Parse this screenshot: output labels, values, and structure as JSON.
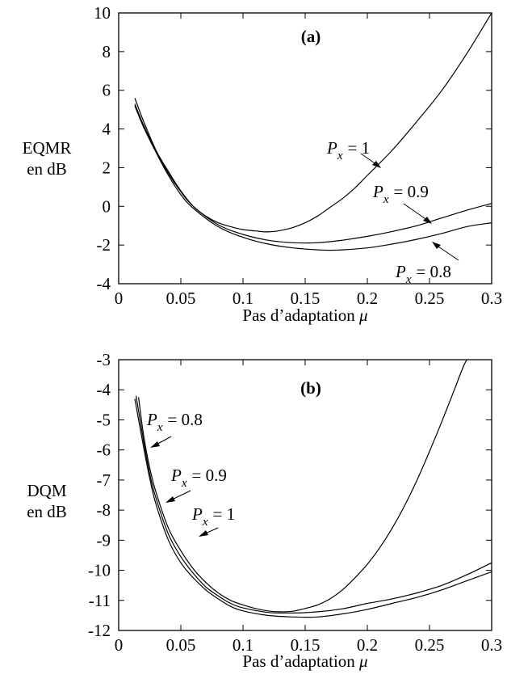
{
  "chart_data": [
    {
      "type": "line",
      "panel_label": "(a)",
      "xlabel": "Pas d’adaptation",
      "xlabel_symbol": "μ",
      "ylabel_lines": [
        "EQMR",
        "en dB"
      ],
      "xlim": [
        0,
        0.3
      ],
      "ylim": [
        -4,
        10
      ],
      "xticks": [
        0,
        0.05,
        0.1,
        0.15,
        0.2,
        0.25,
        0.3
      ],
      "xtick_labels": [
        "0",
        "0.05",
        "0.1",
        "0.15",
        "0.2",
        "0.25",
        "0.3"
      ],
      "yticks": [
        -4,
        -2,
        0,
        2,
        4,
        6,
        8,
        10
      ],
      "ytick_labels": [
        "-4",
        "-2",
        "0",
        "2",
        "4",
        "6",
        "8",
        "10"
      ],
      "series": [
        {
          "name": "P_x = 1",
          "label_var": "P",
          "label_sub": "x",
          "label_val": "= 1",
          "x": [
            0.013,
            0.02,
            0.03,
            0.04,
            0.05,
            0.06,
            0.07,
            0.08,
            0.09,
            0.1,
            0.11,
            0.12,
            0.13,
            0.14,
            0.15,
            0.16,
            0.17,
            0.18,
            0.19,
            0.2,
            0.22,
            0.24,
            0.26,
            0.28,
            0.3
          ],
          "y": [
            5.6,
            4.4,
            2.9,
            1.8,
            0.8,
            0.0,
            -0.5,
            -0.85,
            -1.05,
            -1.2,
            -1.27,
            -1.32,
            -1.25,
            -1.1,
            -0.85,
            -0.5,
            -0.05,
            0.4,
            0.95,
            1.6,
            2.9,
            4.4,
            6.0,
            7.9,
            10.0
          ]
        },
        {
          "name": "P_x = 0.9",
          "label_var": "P",
          "label_sub": "x",
          "label_val": "= 0.9",
          "x": [
            0.013,
            0.02,
            0.03,
            0.04,
            0.05,
            0.06,
            0.08,
            0.1,
            0.12,
            0.14,
            0.16,
            0.18,
            0.2,
            0.22,
            0.24,
            0.26,
            0.28,
            0.3
          ],
          "y": [
            5.3,
            4.2,
            2.85,
            1.7,
            0.75,
            0.0,
            -0.95,
            -1.45,
            -1.75,
            -1.88,
            -1.88,
            -1.75,
            -1.55,
            -1.3,
            -1.0,
            -0.6,
            -0.2,
            0.15
          ]
        },
        {
          "name": "P_x = 0.8",
          "label_var": "P",
          "label_sub": "x",
          "label_val": "= 0.8",
          "x": [
            0.013,
            0.02,
            0.03,
            0.04,
            0.05,
            0.06,
            0.08,
            0.1,
            0.12,
            0.14,
            0.16,
            0.17,
            0.18,
            0.2,
            0.22,
            0.24,
            0.26,
            0.28,
            0.3
          ],
          "y": [
            5.2,
            4.1,
            2.8,
            1.6,
            0.6,
            -0.1,
            -1.05,
            -1.6,
            -1.95,
            -2.15,
            -2.25,
            -2.27,
            -2.25,
            -2.15,
            -1.95,
            -1.7,
            -1.4,
            -1.05,
            -0.85
          ]
        }
      ]
    },
    {
      "type": "line",
      "panel_label": "(b)",
      "xlabel": "Pas d’adaptation",
      "xlabel_symbol": "μ",
      "ylabel_lines": [
        "DQM",
        "en dB"
      ],
      "xlim": [
        0,
        0.3
      ],
      "ylim": [
        -12,
        -3
      ],
      "xticks": [
        0,
        0.05,
        0.1,
        0.15,
        0.2,
        0.25,
        0.3
      ],
      "xtick_labels": [
        "0",
        "0.05",
        "0.1",
        "0.15",
        "0.2",
        "0.25",
        "0.3"
      ],
      "yticks": [
        -12,
        -11,
        -10,
        -9,
        -8,
        -7,
        -6,
        -5,
        -4,
        -3
      ],
      "ytick_labels": [
        "-12",
        "-11",
        "-10",
        "-9",
        "-8",
        "-7",
        "-6",
        "-5",
        "-4",
        "-3"
      ],
      "series": [
        {
          "name": "P_x = 0.8",
          "label_var": "P",
          "label_sub": "x",
          "label_val": "= 0.8",
          "x": [
            0.016,
            0.02,
            0.025,
            0.03,
            0.04,
            0.05,
            0.06,
            0.07,
            0.08,
            0.09,
            0.1,
            0.11,
            0.12,
            0.13,
            0.14,
            0.15,
            0.16,
            0.17,
            0.18,
            0.19,
            0.2,
            0.21,
            0.22,
            0.23,
            0.24,
            0.25,
            0.26,
            0.27,
            0.28,
            0.29
          ],
          "y": [
            -4.25,
            -5.5,
            -6.6,
            -7.4,
            -8.6,
            -9.35,
            -9.95,
            -10.4,
            -10.75,
            -11.0,
            -11.15,
            -11.27,
            -11.35,
            -11.38,
            -11.36,
            -11.27,
            -11.15,
            -10.95,
            -10.65,
            -10.25,
            -9.8,
            -9.25,
            -8.6,
            -7.85,
            -7.0,
            -6.05,
            -5.05,
            -4.0,
            -3.0,
            -2.7
          ]
        },
        {
          "name": "P_x = 0.9",
          "label_var": "P",
          "label_sub": "x",
          "label_val": "= 0.9",
          "x": [
            0.014,
            0.02,
            0.025,
            0.03,
            0.04,
            0.05,
            0.06,
            0.07,
            0.08,
            0.09,
            0.1,
            0.12,
            0.14,
            0.16,
            0.18,
            0.2,
            0.22,
            0.24,
            0.26,
            0.28,
            0.3
          ],
          "y": [
            -4.2,
            -5.7,
            -6.8,
            -7.6,
            -8.8,
            -9.55,
            -10.1,
            -10.55,
            -10.85,
            -11.1,
            -11.25,
            -11.4,
            -11.42,
            -11.38,
            -11.28,
            -11.1,
            -10.95,
            -10.75,
            -10.5,
            -10.15,
            -9.75
          ]
        },
        {
          "name": "P_x = 1",
          "label_var": "P",
          "label_sub": "x",
          "label_val": "= 1",
          "x": [
            0.013,
            0.02,
            0.025,
            0.03,
            0.04,
            0.05,
            0.06,
            0.07,
            0.08,
            0.09,
            0.1,
            0.12,
            0.14,
            0.16,
            0.18,
            0.2,
            0.22,
            0.24,
            0.26,
            0.28,
            0.3
          ],
          "y": [
            -4.3,
            -5.9,
            -6.95,
            -7.8,
            -9.0,
            -9.75,
            -10.25,
            -10.65,
            -10.95,
            -11.2,
            -11.35,
            -11.5,
            -11.55,
            -11.55,
            -11.45,
            -11.3,
            -11.1,
            -10.9,
            -10.65,
            -10.35,
            -10.05
          ]
        }
      ]
    }
  ]
}
